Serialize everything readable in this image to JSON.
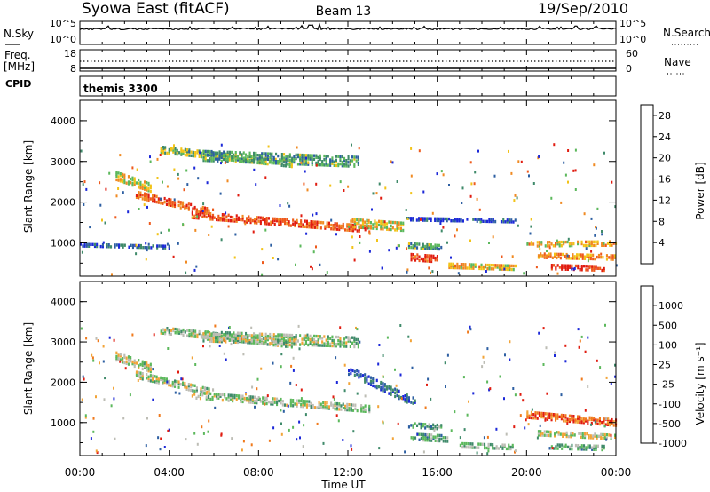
{
  "header": {
    "site": "Syowa East (fitACF)",
    "beam": "Beam 13",
    "date": "19/Sep/2010"
  },
  "noise_panel": {
    "left_label": "N.Sky",
    "right_label": "N.Search",
    "ticks_left": [
      "10^5",
      "10^0"
    ],
    "ticks_right": [
      "10^5",
      "10^0"
    ]
  },
  "freq_panel": {
    "left_label_1": "Freq.",
    "left_label_2": "[MHz]",
    "right_label": "Nave",
    "ticks_left": [
      "18",
      "8"
    ],
    "ticks_right": [
      "60",
      "0"
    ]
  },
  "cpid": {
    "label": "CPID",
    "value": "themis 3300"
  },
  "x_axis": {
    "label": "Time UT",
    "ticks": [
      "00:00",
      "04:00",
      "08:00",
      "12:00",
      "16:00",
      "20:00",
      "00:00"
    ]
  },
  "colors": {
    "power_scale": [
      "#1c28d8",
      "#2d5fa2",
      "#3f8a6a",
      "#5cb85c",
      "#f2c318",
      "#f08a22",
      "#ee5a1c",
      "#e01c10"
    ],
    "velocity_scale": [
      "#1c28d8",
      "#2d5fa2",
      "#3f8a6a",
      "#5cb85c",
      "#bdbdb5",
      "#f2a438",
      "#f07a1c",
      "#e01c10"
    ],
    "ground_scatter": "#bdbdb5"
  },
  "chart_data": [
    {
      "type": "heatmap",
      "title": "",
      "xlabel": "Time UT",
      "ylabel": "Slant Range [km]",
      "xlim_hours": [
        0,
        24
      ],
      "ylim_km": [
        180,
        4500
      ],
      "y_ticks": [
        "1000",
        "2000",
        "3000",
        "4000"
      ],
      "colorbar": {
        "label": "Power [dB]",
        "range": [
          0,
          30
        ],
        "ticks": [
          "28",
          "24",
          "20",
          "16",
          "12",
          "8",
          "4"
        ]
      },
      "echo_regions": [
        {
          "start_h": 3.6,
          "end_h": 9.5,
          "range_start_km": 3300,
          "range_end_km": 2950,
          "thickness_km": 160,
          "level": 0.45
        },
        {
          "start_h": 5.5,
          "end_h": 12.5,
          "range_start_km": 3150,
          "range_end_km": 3000,
          "thickness_km": 250,
          "level": 0.35
        },
        {
          "start_h": 1.6,
          "end_h": 3.2,
          "range_start_km": 2650,
          "range_end_km": 2350,
          "thickness_km": 200,
          "level": 0.55
        },
        {
          "start_h": 2.5,
          "end_h": 6.0,
          "range_start_km": 2200,
          "range_end_km": 1750,
          "thickness_km": 170,
          "level": 0.8
        },
        {
          "start_h": 5.0,
          "end_h": 13.0,
          "range_start_km": 1700,
          "range_end_km": 1350,
          "thickness_km": 170,
          "level": 0.85
        },
        {
          "start_h": 12.0,
          "end_h": 14.5,
          "range_start_km": 1500,
          "range_end_km": 1400,
          "thickness_km": 200,
          "level": 0.55
        },
        {
          "start_h": 14.6,
          "end_h": 19.5,
          "range_start_km": 1600,
          "range_end_km": 1550,
          "thickness_km": 80,
          "level": 0.1
        },
        {
          "start_h": 14.7,
          "end_h": 16.2,
          "range_start_km": 950,
          "range_end_km": 900,
          "thickness_km": 120,
          "level": 0.35
        },
        {
          "start_h": 14.8,
          "end_h": 16.0,
          "range_start_km": 650,
          "range_end_km": 600,
          "thickness_km": 140,
          "level": 0.9
        },
        {
          "start_h": 16.5,
          "end_h": 19.5,
          "range_start_km": 450,
          "range_end_km": 400,
          "thickness_km": 120,
          "level": 0.6
        },
        {
          "start_h": 21.0,
          "end_h": 23.5,
          "range_start_km": 420,
          "range_end_km": 380,
          "thickness_km": 120,
          "level": 0.95
        },
        {
          "start_h": 20.0,
          "end_h": 24.0,
          "range_start_km": 980,
          "range_end_km": 1000,
          "thickness_km": 120,
          "level": 0.6
        },
        {
          "start_h": 20.5,
          "end_h": 24.0,
          "range_start_km": 700,
          "range_end_km": 650,
          "thickness_km": 120,
          "level": 0.7
        },
        {
          "start_h": 0.0,
          "end_h": 4.0,
          "range_start_km": 950,
          "range_end_km": 900,
          "thickness_km": 60,
          "level": 0.2
        }
      ]
    },
    {
      "type": "heatmap",
      "title": "",
      "xlabel": "Time UT",
      "ylabel": "Slant Range [km]",
      "xlim_hours": [
        0,
        24
      ],
      "ylim_km": [
        180,
        4500
      ],
      "y_ticks": [
        "1000",
        "2000",
        "3000",
        "4000"
      ],
      "colorbar": {
        "label": "Velocity [m s⁻¹]",
        "ticks": [
          "1000",
          "500",
          "100",
          "25",
          "-25",
          "-100",
          "-500",
          "-1000"
        ]
      },
      "echo_regions": [
        {
          "start_h": 3.6,
          "end_h": 9.5,
          "range_start_km": 3300,
          "range_end_km": 2950,
          "thickness_km": 160,
          "level": 0.5
        },
        {
          "start_h": 5.5,
          "end_h": 12.5,
          "range_start_km": 3150,
          "range_end_km": 3000,
          "thickness_km": 250,
          "level": 0.5
        },
        {
          "start_h": 1.6,
          "end_h": 3.2,
          "range_start_km": 2650,
          "range_end_km": 2350,
          "thickness_km": 200,
          "level": 0.55
        },
        {
          "start_h": 2.5,
          "end_h": 6.0,
          "range_start_km": 2200,
          "range_end_km": 1750,
          "thickness_km": 170,
          "level": 0.5
        },
        {
          "start_h": 5.0,
          "end_h": 13.0,
          "range_start_km": 1700,
          "range_end_km": 1350,
          "thickness_km": 170,
          "level": 0.5
        },
        {
          "start_h": 12.0,
          "end_h": 15.0,
          "range_start_km": 2300,
          "range_end_km": 1500,
          "thickness_km": 200,
          "level": 0.2
        },
        {
          "start_h": 14.7,
          "end_h": 16.2,
          "range_start_km": 950,
          "range_end_km": 900,
          "thickness_km": 120,
          "level": 0.38
        },
        {
          "start_h": 14.8,
          "end_h": 16.5,
          "range_start_km": 650,
          "range_end_km": 600,
          "thickness_km": 140,
          "level": 0.38
        },
        {
          "start_h": 17.0,
          "end_h": 19.5,
          "range_start_km": 450,
          "range_end_km": 400,
          "thickness_km": 120,
          "level": 0.45
        },
        {
          "start_h": 21.0,
          "end_h": 23.5,
          "range_start_km": 420,
          "range_end_km": 380,
          "thickness_km": 120,
          "level": 0.4
        },
        {
          "start_h": 20.0,
          "end_h": 24.0,
          "range_start_km": 1200,
          "range_end_km": 1000,
          "thickness_km": 150,
          "level": 0.85
        },
        {
          "start_h": 20.5,
          "end_h": 24.0,
          "range_start_km": 750,
          "range_end_km": 650,
          "thickness_km": 120,
          "level": 0.55
        }
      ]
    }
  ]
}
